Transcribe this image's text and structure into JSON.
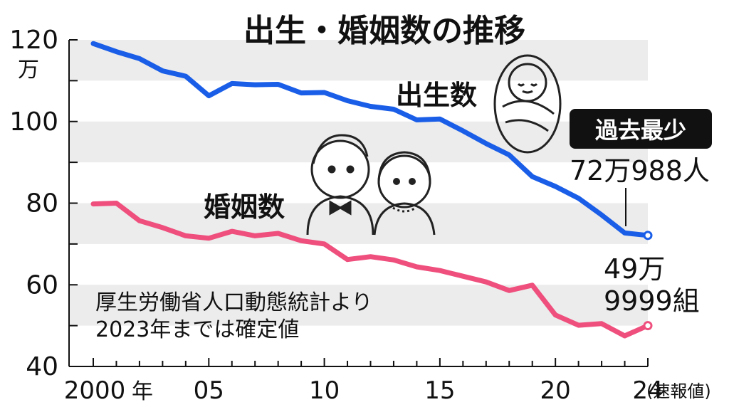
{
  "title": "出生・婚姻数の推移",
  "y_unit": "万",
  "x_suffix": "年",
  "x_note": "(速報値)",
  "source_note": [
    "厚生労働省人口動態統計より",
    "2023年までは確定値"
  ],
  "badge": "過去最少",
  "births_label": "出生数",
  "births_value": "72万988人",
  "marriages_label": "婚姻数",
  "marriages_value": [
    "49万",
    "9999組"
  ],
  "colors": {
    "births": "#1a5ee8",
    "marriages": "#ef4f7d",
    "band": "#ececec",
    "badge": "#111111"
  },
  "chart_data": {
    "type": "line",
    "ylim": [
      40,
      120
    ],
    "yticks": [
      40,
      60,
      80,
      100,
      120
    ],
    "xlim": [
      2000,
      2024
    ],
    "xtick_values": [
      2000,
      2005,
      2010,
      2015,
      2020,
      2024
    ],
    "xtick_labels": [
      "2000",
      "05",
      "10",
      "15",
      "20",
      "24"
    ],
    "grid": "alternating horizontal bands every 10",
    "series": [
      {
        "name": "出生数",
        "x": [
          2000,
          2001,
          2002,
          2003,
          2004,
          2005,
          2006,
          2007,
          2008,
          2009,
          2010,
          2011,
          2012,
          2013,
          2014,
          2015,
          2016,
          2017,
          2018,
          2019,
          2020,
          2021,
          2022,
          2023,
          2024
        ],
        "values": [
          119.1,
          117.1,
          115.4,
          112.4,
          111.1,
          106.3,
          109.3,
          109.0,
          109.1,
          107.0,
          107.1,
          105.1,
          103.7,
          103.0,
          100.4,
          100.6,
          97.7,
          94.6,
          91.8,
          86.5,
          84.1,
          81.2,
          77.1,
          72.7,
          72.1
        ]
      },
      {
        "name": "婚姻数",
        "x": [
          2000,
          2001,
          2002,
          2003,
          2004,
          2005,
          2006,
          2007,
          2008,
          2009,
          2010,
          2011,
          2012,
          2013,
          2014,
          2015,
          2016,
          2017,
          2018,
          2019,
          2020,
          2021,
          2022,
          2023,
          2024
        ],
        "values": [
          79.8,
          80.0,
          75.7,
          74.0,
          72.0,
          71.4,
          73.1,
          72.0,
          72.6,
          70.8,
          70.0,
          66.2,
          66.9,
          66.1,
          64.4,
          63.5,
          62.1,
          60.7,
          58.6,
          59.9,
          52.6,
          50.1,
          50.5,
          47.5,
          50.0
        ]
      }
    ]
  }
}
